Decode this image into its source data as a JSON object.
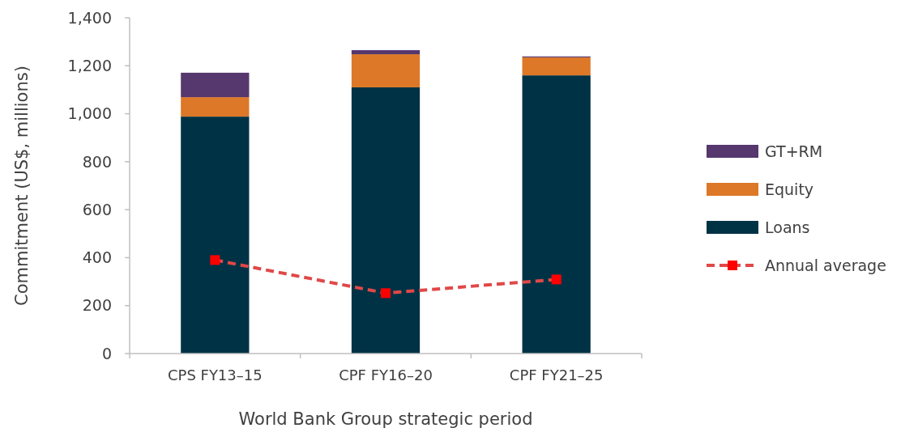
{
  "chart_data": {
    "type": "bar",
    "stacked": true,
    "xlabel": "World Bank Group strategic period",
    "ylabel": "Commitment (US$, millions)",
    "categories": [
      "CPS FY13–15",
      "CPF FY16–20",
      "CPF FY21–25"
    ],
    "series": [
      {
        "name": "Loans",
        "color": "#003245",
        "values": [
          988,
          1110,
          1160
        ]
      },
      {
        "name": "Equity",
        "color": "#dc7828",
        "values": [
          81,
          138,
          75
        ]
      },
      {
        "name": "GT+RM",
        "color": "#56376e",
        "values": [
          102,
          17,
          4
        ]
      },
      {
        "name": "Annual average",
        "type": "line",
        "color": "#e04848",
        "values": [
          390,
          252,
          309
        ],
        "marker": "square",
        "line_style": "dashed"
      }
    ],
    "ylim": [
      0,
      1400
    ],
    "yticks": [
      {
        "value": 0,
        "label": "0"
      },
      {
        "value": 200,
        "label": "200"
      },
      {
        "value": 400,
        "label": "400"
      },
      {
        "value": 600,
        "label": "600"
      },
      {
        "value": 800,
        "label": "800"
      },
      {
        "value": 1000,
        "label": "1,000"
      },
      {
        "value": 1200,
        "label": "1,200"
      },
      {
        "value": 1400,
        "label": "1,400"
      }
    ],
    "grid": false,
    "legend": "right"
  }
}
